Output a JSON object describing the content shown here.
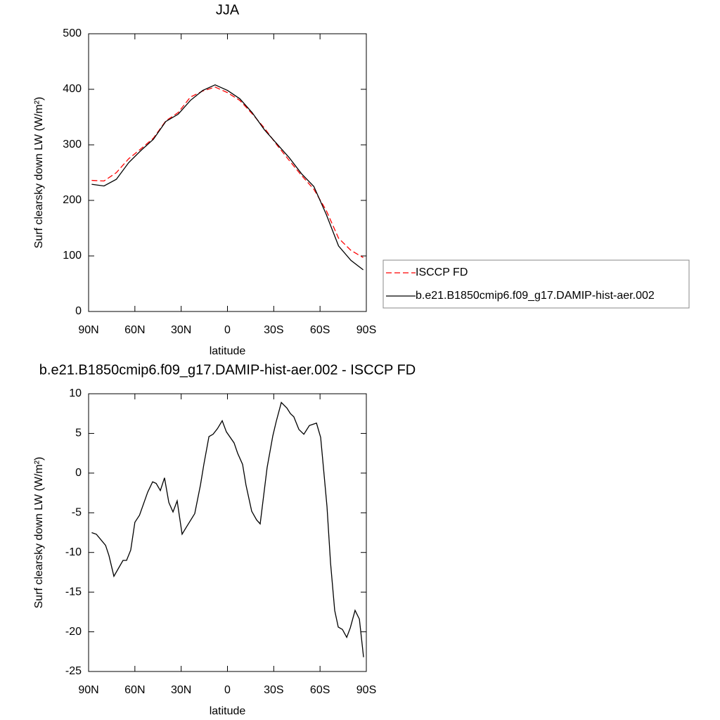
{
  "chart_data": [
    {
      "type": "line",
      "title": "JJA",
      "xlabel": "latitude",
      "ylabel": "Surf clearsky down LW (W/m²)",
      "x": [
        88,
        80,
        72,
        64,
        56,
        48,
        40,
        32,
        24,
        16,
        8,
        0,
        -8,
        -16,
        -24,
        -32,
        -40,
        -48,
        -56,
        -64,
        -72,
        -80,
        -88
      ],
      "series": [
        {
          "name": "ISCCP FD",
          "color": "#ff0000",
          "linestyle": "dashed",
          "values": [
            236,
            235,
            250,
            275,
            293,
            312,
            343,
            358,
            386,
            397,
            404,
            394,
            380,
            356,
            330,
            300,
            272,
            245,
            220,
            182,
            132,
            110,
            97
          ]
        },
        {
          "name": "b.e21.B1850cmip6.f09_g17.DAMIP-hist-aer.002",
          "color": "#000000",
          "linestyle": "solid",
          "values": [
            229,
            226,
            238,
            268,
            290,
            310,
            342,
            355,
            380,
            398,
            408,
            398,
            383,
            358,
            327,
            302,
            277,
            248,
            225,
            175,
            118,
            92,
            75
          ]
        }
      ],
      "xlim": [
        90,
        -90
      ],
      "xticks": [
        {
          "value": 90,
          "label": "90N"
        },
        {
          "value": 60,
          "label": "60N"
        },
        {
          "value": 30,
          "label": "30N"
        },
        0,
        {
          "value": -30,
          "label": "30S"
        },
        {
          "value": -60,
          "label": "60S"
        },
        {
          "value": -90,
          "label": "90S"
        }
      ],
      "ylim": [
        0,
        500
      ],
      "yticks": [
        0,
        100,
        200,
        300,
        400,
        500
      ],
      "legend": "right"
    },
    {
      "type": "line",
      "title": "b.e21.B1850cmip6.f09_g17.DAMIP-hist-aer.002 - ISCCP FD",
      "xlabel": "latitude",
      "ylabel": "Surf clearsky down LW (W/m²)",
      "x": [
        88,
        85,
        79,
        76.8,
        73.6,
        67.7,
        65.4,
        62.7,
        60,
        57,
        51.7,
        48.5,
        46.2,
        43.5,
        40.8,
        38,
        35.3,
        32.6,
        29.4,
        26.6,
        21.2,
        17.5,
        15.3,
        12,
        9.3,
        6.5,
        3.4,
        0.7,
        -4.3,
        -6.6,
        -9.8,
        -12,
        -15.7,
        -18.9,
        -21.2,
        -25.7,
        -29.4,
        -31.6,
        -34.9,
        -38.5,
        -40.8,
        -43,
        -46.3,
        -49.5,
        -53.1,
        -57.7,
        -60.4,
        -62.2,
        -64.5,
        -66.8,
        -69.5,
        -71.8,
        -74.5,
        -77.3,
        -79.6,
        -82.7,
        -85.5,
        -88.2
      ],
      "series": [
        {
          "color": "#000000",
          "linestyle": "solid",
          "values": [
            -7.5,
            -7.7,
            -9.1,
            -10.4,
            -13,
            -11,
            -11,
            -9.7,
            -6.2,
            -5.3,
            -2.4,
            -1.1,
            -1.3,
            -2.2,
            -0.6,
            -3.7,
            -4.9,
            -3.5,
            -7.7,
            -6.8,
            -5.1,
            -1.5,
            1.1,
            4.6,
            4.9,
            5.6,
            6.6,
            5.2,
            3.8,
            2.5,
            1.1,
            -1.5,
            -4.8,
            -5.9,
            -6.4,
            0.7,
            4.7,
            6.5,
            8.9,
            8.2,
            7.5,
            7.1,
            5.5,
            4.9,
            6.0,
            6.3,
            4.5,
            0.7,
            -4.2,
            -11.3,
            -17.3,
            -19.4,
            -19.7,
            -20.7,
            -19.5,
            -17.3,
            -18.4,
            -23.2
          ]
        }
      ],
      "xlim": [
        90,
        -90
      ],
      "xticks": [
        {
          "value": 90,
          "label": "90N"
        },
        {
          "value": 60,
          "label": "60N"
        },
        {
          "value": 30,
          "label": "30N"
        },
        0,
        {
          "value": -30,
          "label": "30S"
        },
        {
          "value": -60,
          "label": "60S"
        },
        {
          "value": -90,
          "label": "90S"
        }
      ],
      "ylim": [
        -25,
        10
      ],
      "yticks": [
        -25,
        -20,
        -15,
        -10,
        -5,
        0,
        5,
        10
      ]
    }
  ]
}
